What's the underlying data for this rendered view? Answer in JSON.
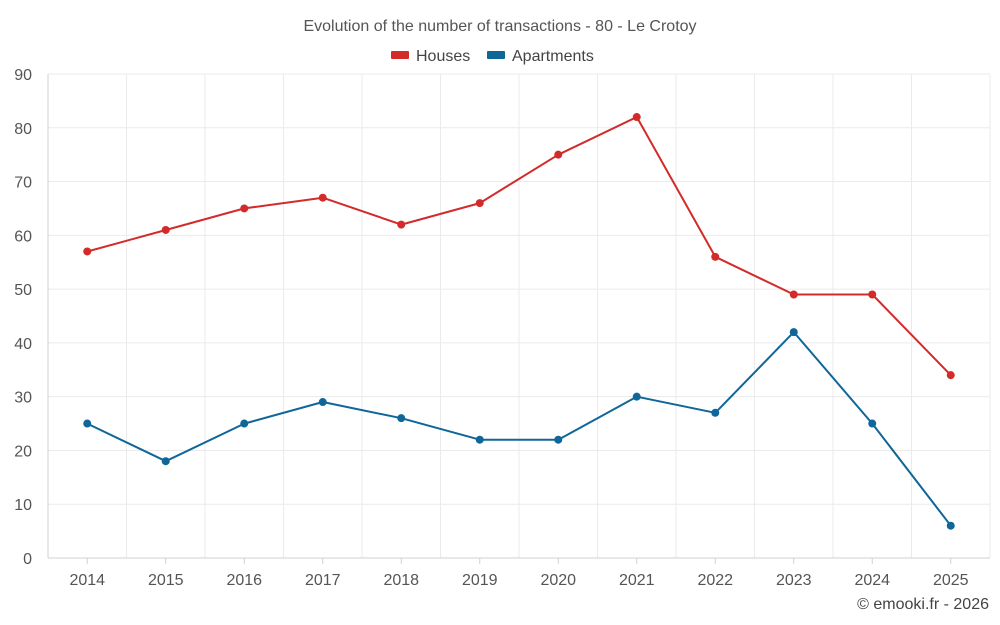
{
  "chart_data": {
    "type": "line",
    "title": "Evolution of the number of transactions - 80 - Le Crotoy",
    "categories": [
      "2014",
      "2015",
      "2016",
      "2017",
      "2018",
      "2019",
      "2020",
      "2021",
      "2022",
      "2023",
      "2024",
      "2025"
    ],
    "series": [
      {
        "name": "Houses",
        "color": "#d32a2a",
        "values": [
          57,
          61,
          65,
          67,
          62,
          66,
          75,
          82,
          56,
          49,
          49,
          34
        ]
      },
      {
        "name": "Apartments",
        "color": "#0e6699",
        "values": [
          25,
          18,
          25,
          29,
          26,
          22,
          22,
          30,
          27,
          42,
          25,
          6
        ]
      }
    ],
    "ylim": [
      0,
      90
    ],
    "yticks": [
      0,
      10,
      20,
      30,
      40,
      50,
      60,
      70,
      80,
      90
    ],
    "xlabel": "",
    "ylabel": "",
    "grid": true,
    "legend": "top-center"
  },
  "credit": "© emooki.fr - 2026"
}
